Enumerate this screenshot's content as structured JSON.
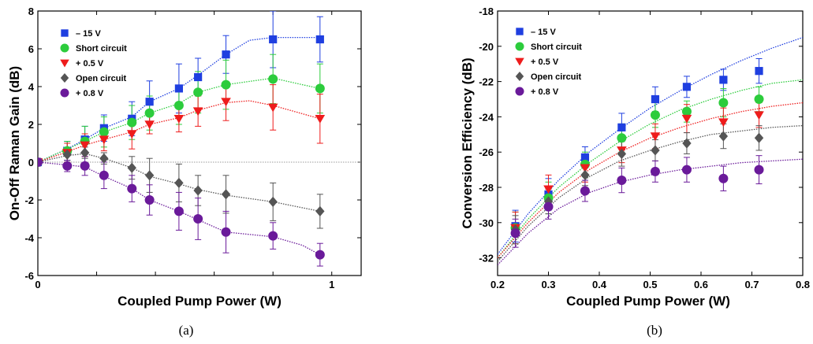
{
  "chart_data": [
    {
      "type": "scatter",
      "panel_label": "(a)",
      "xlabel": "Coupled Pump Power (W)",
      "ylabel": "On-Off Raman Gain (dB)",
      "xlim": [
        0,
        1.1
      ],
      "ylim": [
        -6,
        8
      ],
      "xticks": [
        0,
        0.2,
        0.4,
        0.6,
        0.8,
        1
      ],
      "xtick_labels": [
        "0",
        "",
        "",
        "",
        "",
        "1"
      ],
      "yticks": [
        -6,
        -4,
        -2,
        0,
        2,
        4,
        6,
        8
      ],
      "ytick_labels": [
        "-6",
        "-4",
        "-2",
        "0",
        "2",
        "4",
        "6",
        "8"
      ],
      "grid": false,
      "legend_position": "top-left",
      "reference_line": 0,
      "series": [
        {
          "name": "– 15 V",
          "color": "#1f3fe0",
          "marker": "square",
          "x": [
            0,
            0.1,
            0.16,
            0.225,
            0.32,
            0.38,
            0.48,
            0.545,
            0.64,
            0.8,
            0.96
          ],
          "y": [
            0,
            0.6,
            1.2,
            1.8,
            2.3,
            3.2,
            3.9,
            4.5,
            5.7,
            6.5,
            6.5
          ],
          "err": [
            0.2,
            0.5,
            0.7,
            0.7,
            0.9,
            1.1,
            1.3,
            1.0,
            1.0,
            1.5,
            1.2
          ],
          "fit": [
            [
              0,
              0
            ],
            [
              0.1,
              0.7
            ],
            [
              0.16,
              1.2
            ],
            [
              0.225,
              1.8
            ],
            [
              0.32,
              2.4
            ],
            [
              0.38,
              3.2
            ],
            [
              0.48,
              3.9
            ],
            [
              0.545,
              4.6
            ],
            [
              0.64,
              5.7
            ],
            [
              0.72,
              6.45
            ],
            [
              0.8,
              6.6
            ],
            [
              0.96,
              6.6
            ]
          ]
        },
        {
          "name": "Short circuit",
          "color": "#2ccc3c",
          "marker": "circle",
          "x": [
            0,
            0.1,
            0.16,
            0.225,
            0.32,
            0.38,
            0.48,
            0.545,
            0.64,
            0.8,
            0.96
          ],
          "y": [
            0,
            0.6,
            1.1,
            1.6,
            2.1,
            2.6,
            3.0,
            3.7,
            4.1,
            4.4,
            3.9
          ],
          "err": [
            0.2,
            0.5,
            0.8,
            0.8,
            0.9,
            0.9,
            1.0,
            1.1,
            1.3,
            1.3,
            1.3
          ],
          "fit": [
            [
              0,
              0
            ],
            [
              0.1,
              0.7
            ],
            [
              0.16,
              1.1
            ],
            [
              0.225,
              1.6
            ],
            [
              0.32,
              2.1
            ],
            [
              0.38,
              2.6
            ],
            [
              0.48,
              3.1
            ],
            [
              0.545,
              3.7
            ],
            [
              0.64,
              4.1
            ],
            [
              0.8,
              4.45
            ],
            [
              0.9,
              4.1
            ],
            [
              0.96,
              3.9
            ]
          ]
        },
        {
          "name": "+ 0.5 V",
          "color": "#ee1c1c",
          "marker": "triangle-down",
          "x": [
            0,
            0.1,
            0.16,
            0.225,
            0.32,
            0.38,
            0.48,
            0.545,
            0.64,
            0.8,
            0.96
          ],
          "y": [
            0,
            0.5,
            0.9,
            1.2,
            1.5,
            2.0,
            2.3,
            2.7,
            3.2,
            2.9,
            2.3
          ],
          "err": [
            0.2,
            0.5,
            0.6,
            0.6,
            0.8,
            0.5,
            0.7,
            0.8,
            1.0,
            1.2,
            1.3
          ],
          "fit": [
            [
              0,
              0
            ],
            [
              0.1,
              0.55
            ],
            [
              0.16,
              0.9
            ],
            [
              0.225,
              1.2
            ],
            [
              0.32,
              1.6
            ],
            [
              0.38,
              2.0
            ],
            [
              0.48,
              2.35
            ],
            [
              0.545,
              2.75
            ],
            [
              0.64,
              3.15
            ],
            [
              0.72,
              3.25
            ],
            [
              0.8,
              3.0
            ],
            [
              0.96,
              2.3
            ]
          ]
        },
        {
          "name": "Open circuit",
          "color": "#555555",
          "marker": "diamond",
          "x": [
            0,
            0.1,
            0.16,
            0.225,
            0.32,
            0.38,
            0.48,
            0.545,
            0.64,
            0.8,
            0.96
          ],
          "y": [
            0,
            0.4,
            0.5,
            0.2,
            -0.3,
            -0.7,
            -1.1,
            -1.5,
            -1.7,
            -2.1,
            -2.6
          ],
          "err": [
            0.2,
            0.3,
            0.3,
            0.3,
            0.6,
            0.9,
            1.0,
            0.8,
            1.0,
            1.0,
            0.9
          ],
          "fit": [
            [
              0,
              0
            ],
            [
              0.1,
              0.35
            ],
            [
              0.16,
              0.45
            ],
            [
              0.225,
              0.2
            ],
            [
              0.32,
              -0.3
            ],
            [
              0.38,
              -0.75
            ],
            [
              0.48,
              -1.15
            ],
            [
              0.545,
              -1.45
            ],
            [
              0.64,
              -1.75
            ],
            [
              0.8,
              -2.1
            ],
            [
              0.96,
              -2.6
            ]
          ]
        },
        {
          "name": "+ 0.8 V",
          "color": "#6a1a9a",
          "marker": "circle",
          "x": [
            0,
            0.1,
            0.16,
            0.225,
            0.32,
            0.38,
            0.48,
            0.545,
            0.64,
            0.8,
            0.96
          ],
          "y": [
            0,
            -0.2,
            -0.2,
            -0.7,
            -1.4,
            -2.0,
            -2.6,
            -3.0,
            -3.7,
            -3.9,
            -4.9
          ],
          "err": [
            0.2,
            0.3,
            0.5,
            0.7,
            0.7,
            0.8,
            1.0,
            1.1,
            1.1,
            0.7,
            0.6
          ],
          "fit": [
            [
              0,
              0
            ],
            [
              0.1,
              -0.15
            ],
            [
              0.16,
              -0.25
            ],
            [
              0.225,
              -0.75
            ],
            [
              0.32,
              -1.4
            ],
            [
              0.38,
              -2.0
            ],
            [
              0.48,
              -2.6
            ],
            [
              0.545,
              -3.05
            ],
            [
              0.64,
              -3.7
            ],
            [
              0.8,
              -3.95
            ],
            [
              0.9,
              -4.4
            ],
            [
              0.96,
              -4.9
            ]
          ]
        }
      ]
    },
    {
      "type": "scatter",
      "panel_label": "(b)",
      "xlabel": "Coupled Pump Power (W)",
      "ylabel": "Conversion Efficiency (dB)",
      "xlim": [
        0.2,
        0.8
      ],
      "ylim": [
        -33,
        -18
      ],
      "xticks": [
        0.2,
        0.3,
        0.4,
        0.5,
        0.6,
        0.7,
        0.8
      ],
      "xtick_labels": [
        "0.2",
        "0.3",
        "0.4",
        "0.5",
        "0.6",
        "0.7",
        "0.8"
      ],
      "yticks": [
        -32,
        -30,
        -28,
        -26,
        -24,
        -22,
        -20,
        -18
      ],
      "ytick_labels": [
        "-32",
        "-30",
        "-28",
        "-26",
        "-24",
        "-22",
        "-20",
        "-18"
      ],
      "grid": false,
      "legend_position": "top-left",
      "series": [
        {
          "name": "– 15 V",
          "color": "#1f3fe0",
          "marker": "square",
          "x": [
            0.235,
            0.3,
            0.372,
            0.444,
            0.51,
            0.572,
            0.644,
            0.714
          ],
          "y": [
            -30.2,
            -28.4,
            -26.3,
            -24.6,
            -23.0,
            -22.3,
            -21.9,
            -21.4
          ],
          "err": [
            0.9,
            0.9,
            0.6,
            0.8,
            0.7,
            0.6,
            0.6,
            0.7
          ],
          "fit": [
            [
              0.2,
              -31.8
            ],
            [
              0.26,
              -29.5
            ],
            [
              0.32,
              -27.6
            ],
            [
              0.38,
              -26.0
            ],
            [
              0.44,
              -24.7
            ],
            [
              0.5,
              -23.5
            ],
            [
              0.56,
              -22.5
            ],
            [
              0.62,
              -21.6
            ],
            [
              0.68,
              -20.8
            ],
            [
              0.74,
              -20.1
            ],
            [
              0.8,
              -19.5
            ]
          ]
        },
        {
          "name": "Short circuit",
          "color": "#2ccc3c",
          "marker": "circle",
          "x": [
            0.235,
            0.3,
            0.372,
            0.444,
            0.51,
            0.572,
            0.644,
            0.714
          ],
          "y": [
            -30.3,
            -28.6,
            -26.7,
            -25.2,
            -23.9,
            -23.7,
            -23.2,
            -23.0
          ],
          "err": [
            0.9,
            0.9,
            0.7,
            0.8,
            0.7,
            0.6,
            0.8,
            0.7
          ],
          "fit": [
            [
              0.2,
              -32.0
            ],
            [
              0.26,
              -29.8
            ],
            [
              0.32,
              -28.0
            ],
            [
              0.38,
              -26.6
            ],
            [
              0.44,
              -25.4
            ],
            [
              0.5,
              -24.4
            ],
            [
              0.56,
              -23.6
            ],
            [
              0.62,
              -23.0
            ],
            [
              0.68,
              -22.5
            ],
            [
              0.74,
              -22.1
            ],
            [
              0.8,
              -21.9
            ]
          ]
        },
        {
          "name": "+ 0.5 V",
          "color": "#ee1c1c",
          "marker": "triangle-down",
          "x": [
            0.235,
            0.3,
            0.372,
            0.444,
            0.51,
            0.572,
            0.644,
            0.714
          ],
          "y": [
            -30.3,
            -28.1,
            -26.9,
            -25.9,
            -25.1,
            -24.1,
            -24.3,
            -23.9
          ],
          "err": [
            0.9,
            0.8,
            0.8,
            0.7,
            0.7,
            0.8,
            0.8,
            0.7
          ],
          "fit": [
            [
              0.2,
              -32.0
            ],
            [
              0.26,
              -30.0
            ],
            [
              0.32,
              -28.3
            ],
            [
              0.38,
              -27.0
            ],
            [
              0.44,
              -26.0
            ],
            [
              0.5,
              -25.2
            ],
            [
              0.56,
              -24.6
            ],
            [
              0.62,
              -24.1
            ],
            [
              0.68,
              -23.7
            ],
            [
              0.74,
              -23.4
            ],
            [
              0.8,
              -23.2
            ]
          ]
        },
        {
          "name": "Open circuit",
          "color": "#555555",
          "marker": "diamond",
          "x": [
            0.235,
            0.3,
            0.372,
            0.444,
            0.51,
            0.572,
            0.644,
            0.714
          ],
          "y": [
            -30.4,
            -28.8,
            -27.3,
            -26.1,
            -25.9,
            -25.5,
            -25.1,
            -25.2
          ],
          "err": [
            0.8,
            0.7,
            0.6,
            0.7,
            0.6,
            0.6,
            0.7,
            0.7
          ],
          "fit": [
            [
              0.2,
              -32.2
            ],
            [
              0.26,
              -30.2
            ],
            [
              0.32,
              -28.6
            ],
            [
              0.38,
              -27.4
            ],
            [
              0.44,
              -26.5
            ],
            [
              0.5,
              -25.9
            ],
            [
              0.56,
              -25.4
            ],
            [
              0.62,
              -25.0
            ],
            [
              0.68,
              -24.8
            ],
            [
              0.74,
              -24.6
            ],
            [
              0.8,
              -24.5
            ]
          ]
        },
        {
          "name": "+ 0.8 V",
          "color": "#6a1a9a",
          "marker": "circle",
          "x": [
            0.235,
            0.3,
            0.372,
            0.444,
            0.51,
            0.572,
            0.644,
            0.714
          ],
          "y": [
            -30.6,
            -29.1,
            -28.2,
            -27.6,
            -27.1,
            -27.0,
            -27.5,
            -27.0
          ],
          "err": [
            0.8,
            0.7,
            0.6,
            0.7,
            0.6,
            0.7,
            0.7,
            0.8
          ],
          "fit": [
            [
              0.2,
              -32.4
            ],
            [
              0.26,
              -30.6
            ],
            [
              0.32,
              -29.2
            ],
            [
              0.38,
              -28.3
            ],
            [
              0.44,
              -27.7
            ],
            [
              0.5,
              -27.3
            ],
            [
              0.56,
              -27.0
            ],
            [
              0.62,
              -26.8
            ],
            [
              0.68,
              -26.6
            ],
            [
              0.74,
              -26.5
            ],
            [
              0.8,
              -26.4
            ]
          ]
        }
      ]
    }
  ]
}
